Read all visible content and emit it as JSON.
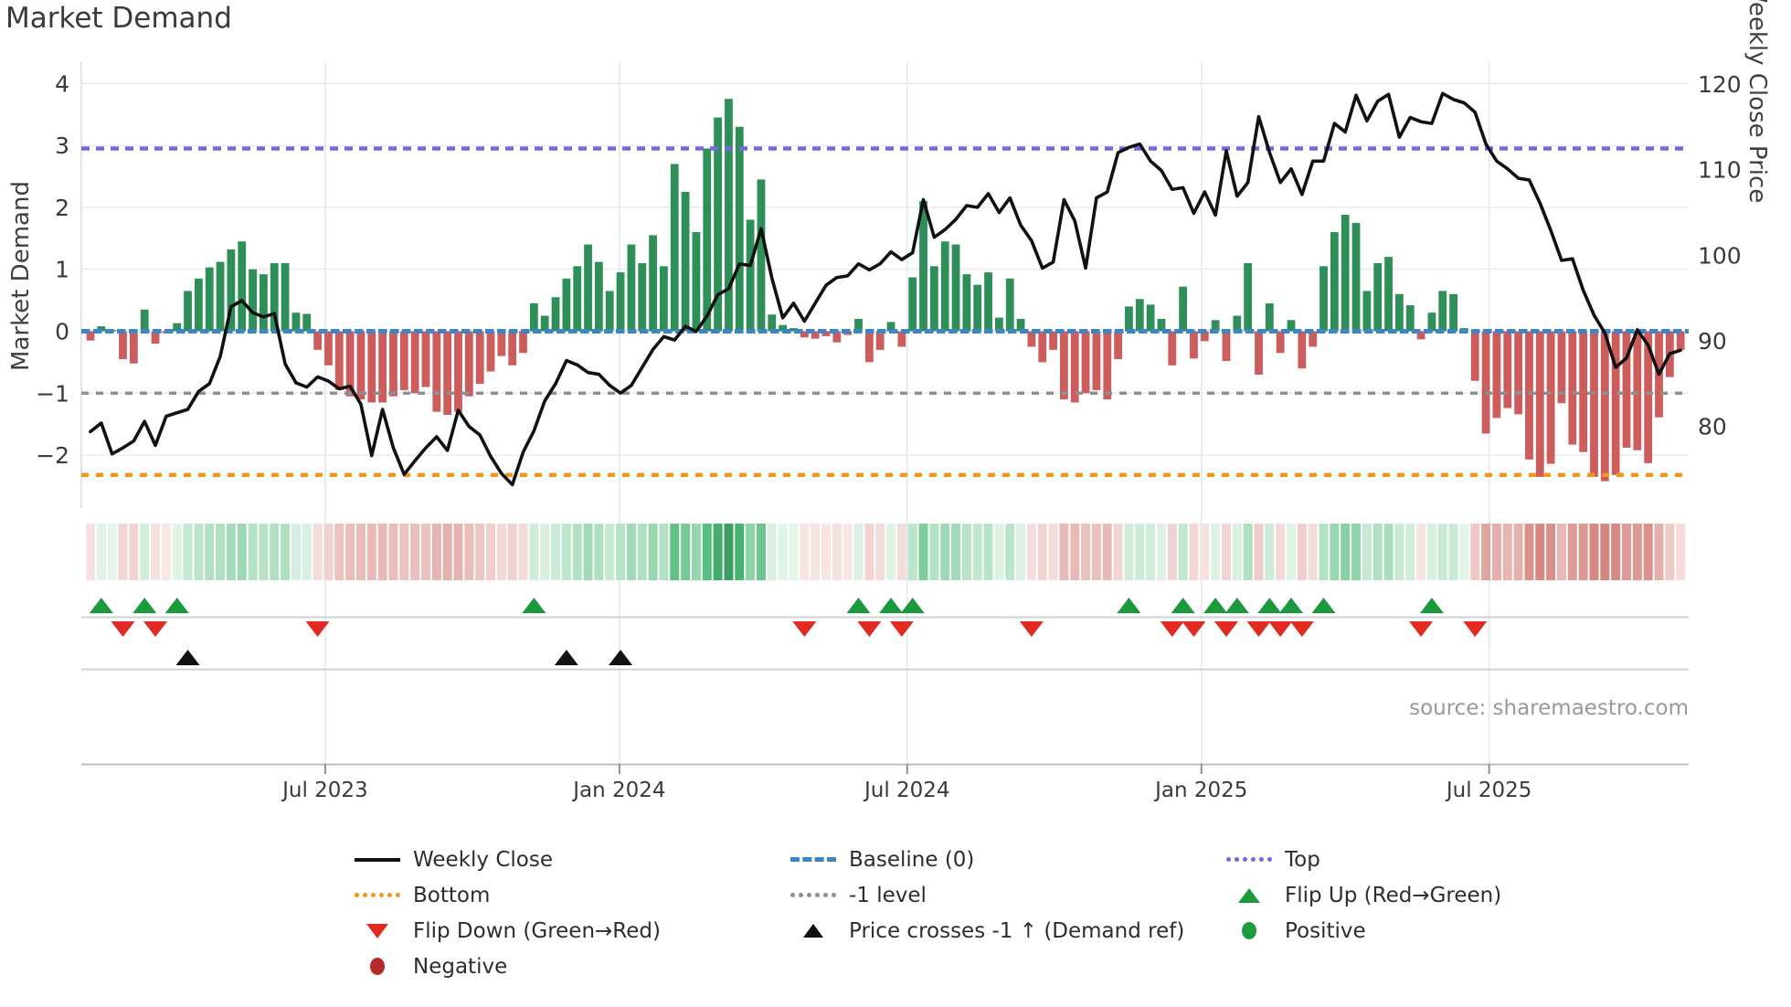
{
  "title": "Market Demand",
  "source": "source: sharemaestro.com",
  "chart_data": {
    "type": "bar",
    "description": "Weekly market demand bars (left axis) with weekly close price line (right axis), heatmap strip of demand intensity, and flip/cross signal markers. Weekly data, ~Feb 2023 to Nov 2025.",
    "demand_axis": {
      "label": "Market Demand",
      "ticks": [
        4,
        3,
        2,
        1,
        0,
        -1,
        -2
      ],
      "range": [
        -2.6,
        4.3
      ]
    },
    "price_axis": {
      "label": "Weekly Close Price",
      "ticks": [
        120,
        110,
        100,
        90,
        80
      ],
      "range": [
        72,
        121
      ]
    },
    "x_axis": {
      "ticks": [
        {
          "label": "Jul 2023",
          "week": 21.7
        },
        {
          "label": "Jan 2024",
          "week": 48.9
        },
        {
          "label": "Jul 2024",
          "week": 75.5
        },
        {
          "label": "Jan 2025",
          "week": 102.7
        },
        {
          "label": "Jul 2025",
          "week": 129.3
        }
      ]
    },
    "ref_lines": {
      "top": {
        "label": "Top",
        "value": 2.95
      },
      "baseline": {
        "label": "Baseline (0)",
        "value": 0
      },
      "minus1": {
        "label": "-1 level",
        "value": -1
      },
      "bottom": {
        "label": "Bottom",
        "value": -2.32
      }
    },
    "series": [
      {
        "name": "Market Demand",
        "type": "bar",
        "axis": "demand",
        "values": [
          -0.15,
          0.08,
          0.02,
          -0.45,
          -0.52,
          0.35,
          -0.2,
          -0.03,
          0.13,
          0.65,
          0.85,
          1.03,
          1.12,
          1.32,
          1.45,
          1.0,
          0.92,
          1.1,
          1.1,
          0.3,
          0.28,
          -0.3,
          -0.55,
          -0.95,
          -1.05,
          -1.1,
          -1.15,
          -1.15,
          -1.05,
          -0.95,
          -1.0,
          -0.9,
          -1.3,
          -1.35,
          -1.3,
          -1.05,
          -0.85,
          -0.65,
          -0.4,
          -0.55,
          -0.35,
          0.45,
          0.25,
          0.55,
          0.85,
          1.05,
          1.4,
          1.12,
          0.65,
          0.95,
          1.4,
          1.1,
          1.55,
          1.05,
          2.7,
          2.25,
          1.6,
          2.95,
          3.45,
          3.75,
          3.3,
          1.8,
          2.45,
          0.27,
          0.1,
          0.05,
          -0.1,
          -0.12,
          -0.08,
          -0.18,
          -0.06,
          0.2,
          -0.5,
          -0.3,
          0.15,
          -0.25,
          0.87,
          2.1,
          1.05,
          1.45,
          1.4,
          0.92,
          0.75,
          0.95,
          0.22,
          0.85,
          0.2,
          -0.25,
          -0.5,
          -0.3,
          -1.1,
          -1.15,
          -1.0,
          -0.95,
          -1.1,
          -0.45,
          0.4,
          0.52,
          0.43,
          0.2,
          -0.55,
          0.72,
          -0.44,
          -0.16,
          0.18,
          -0.48,
          0.25,
          1.1,
          -0.7,
          0.45,
          -0.35,
          0.18,
          -0.6,
          -0.25,
          1.05,
          1.6,
          1.88,
          1.75,
          0.65,
          1.1,
          1.2,
          0.6,
          0.42,
          -0.13,
          0.3,
          0.65,
          0.6,
          0.05,
          -0.8,
          -1.65,
          -1.4,
          -1.24,
          -1.34,
          -2.07,
          -2.35,
          -2.14,
          -1.16,
          -1.83,
          -1.95,
          -2.35,
          -2.42,
          -2.32,
          -1.88,
          -1.92,
          -2.13,
          -1.39,
          -0.74,
          -0.3
        ]
      },
      {
        "name": "Weekly Close",
        "type": "line",
        "axis": "price",
        "values": [
          79.4,
          80.4,
          76.8,
          77.5,
          78.3,
          80.6,
          77.8,
          81.2,
          81.6,
          82.0,
          84.1,
          85.0,
          88.2,
          94.0,
          94.7,
          93.3,
          92.8,
          93.2,
          87.3,
          85.1,
          84.6,
          85.8,
          85.3,
          84.4,
          84.7,
          82.6,
          76.6,
          82.0,
          77.5,
          74.4,
          76.0,
          77.5,
          78.8,
          77.2,
          81.9,
          80.0,
          79.0,
          76.5,
          74.5,
          73.2,
          77.0,
          79.5,
          83.0,
          85.0,
          87.7,
          87.2,
          86.3,
          86.1,
          84.8,
          83.9,
          84.8,
          86.9,
          89.0,
          90.5,
          90.1,
          91.7,
          91.1,
          92.9,
          95.4,
          96.1,
          99.0,
          98.8,
          103.1,
          97.3,
          92.7,
          94.4,
          92.3,
          94.4,
          96.5,
          97.4,
          97.6,
          99.0,
          98.3,
          99.0,
          100.4,
          99.5,
          100.3,
          106.5,
          102.1,
          103.0,
          104.2,
          105.8,
          105.6,
          107.2,
          105.0,
          106.7,
          103.5,
          101.7,
          98.5,
          99.2,
          106.5,
          104.0,
          98.5,
          106.7,
          107.4,
          112.0,
          112.6,
          113.0,
          111.0,
          109.9,
          107.7,
          107.9,
          104.9,
          107.4,
          104.7,
          112.2,
          106.9,
          108.5,
          116.2,
          112.0,
          108.5,
          110.1,
          107.1,
          111.0,
          111.0,
          115.4,
          114.4,
          118.7,
          115.7,
          118.0,
          118.8,
          113.8,
          116.1,
          115.6,
          115.4,
          118.9,
          118.2,
          117.8,
          116.7,
          113.0,
          111.0,
          110.1,
          109.0,
          108.8,
          106.1,
          102.9,
          99.4,
          99.6,
          95.9,
          93.0,
          90.9,
          86.9,
          88.0,
          91.3,
          89.5,
          86.1,
          88.5,
          88.9
        ]
      }
    ],
    "heatmap": {
      "note": "strip encodes weekly demand value as color intensity (green positive, red negative)"
    },
    "markers": {
      "flip_up": {
        "label": "Flip Up (Red→Green)",
        "weeks": [
          1,
          5,
          8,
          41,
          71,
          74,
          76,
          96,
          101,
          104,
          106,
          109,
          111,
          114,
          124
        ]
      },
      "flip_down": {
        "label": "Flip Down (Green→Red)",
        "weeks": [
          3,
          6,
          21,
          66,
          72,
          75,
          87,
          100,
          102,
          105,
          108,
          110,
          112,
          123,
          128
        ]
      },
      "price_cross": {
        "label": "Price crosses -1 ↑ (Demand ref)",
        "weeks": [
          9,
          44,
          49
        ]
      }
    },
    "legend_position": "bottom"
  },
  "legend": {
    "items": [
      {
        "label": "Weekly Close",
        "swatch": "line-black"
      },
      {
        "label": "Baseline (0)",
        "swatch": "dash-blue"
      },
      {
        "label": "Top",
        "swatch": "dot-purple"
      },
      {
        "label": "Bottom",
        "swatch": "dot-orange"
      },
      {
        "label": "-1 level",
        "swatch": "dot-gray"
      },
      {
        "label": "Flip Up (Red→Green)",
        "swatch": "tri-up-green"
      },
      {
        "label": "Flip Down (Green→Red)",
        "swatch": "tri-down-red"
      },
      {
        "label": "Price crosses -1 ↑ (Demand ref)",
        "swatch": "tri-up-black"
      },
      {
        "label": "Positive",
        "swatch": "circle-green"
      },
      {
        "label": "Negative",
        "swatch": "circle-darkred"
      }
    ]
  },
  "colors": {
    "bar_positive": "#2f8f58",
    "bar_negative": "#cd5c5c",
    "price_line": "#111111",
    "baseline": "#3d85c4",
    "top_line": "#7468dd",
    "minus1_line": "#8f8f8f",
    "bottom_line": "#f5941e",
    "flip_up": "#1a9a3c",
    "flip_down": "#e22a23",
    "price_cross": "#111111",
    "grid": "#ebebf2",
    "axis_line": "#c4c4c4",
    "tick_text": "#3a3a3a"
  }
}
